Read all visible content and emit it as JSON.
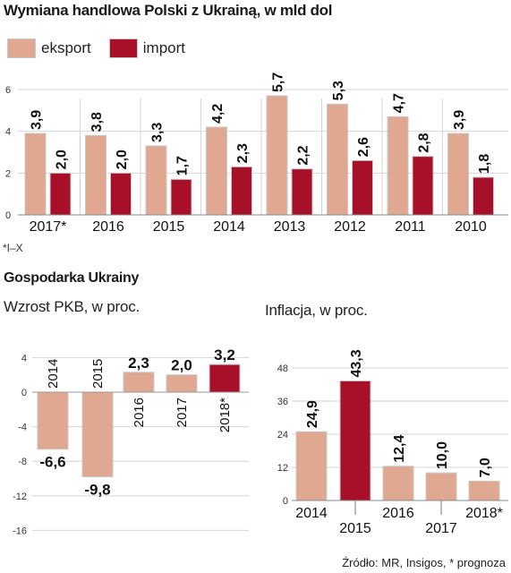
{
  "title": "Wymiana handlowa Polski z Ukrainą, w mld dol",
  "colors": {
    "export": "#e0a891",
    "import": "#a8102a",
    "bar_border": "#c8c8c8"
  },
  "note": "*I–X",
  "section_title": "Gospodarka Ukrainy",
  "source": "Źródło: MR, Insigos, * prognoza",
  "chart_data": [
    {
      "type": "bar",
      "title": "Wymiana handlowa Polski z Ukrainą, w mld dol",
      "categories": [
        "2017*",
        "2016",
        "2015",
        "2014",
        "2013",
        "2012",
        "2011",
        "2010"
      ],
      "series": [
        {
          "name": "eksport",
          "values": [
            3.9,
            3.8,
            3.3,
            4.2,
            5.7,
            5.3,
            4.7,
            3.9
          ],
          "labels": [
            "3,9",
            "3,8",
            "3,3",
            "4,2",
            "5,7",
            "5,3",
            "4,7",
            "3,9"
          ]
        },
        {
          "name": "import",
          "values": [
            2.0,
            2.0,
            1.7,
            2.3,
            2.2,
            2.6,
            2.8,
            1.8
          ],
          "labels": [
            "2,0",
            "2,0",
            "1,7",
            "2,3",
            "2,2",
            "2,6",
            "2,8",
            "1,8"
          ]
        }
      ],
      "yticks": [
        "0",
        "2",
        "4",
        "6"
      ],
      "ylim": [
        0,
        6
      ],
      "legend": "top-left"
    },
    {
      "type": "bar",
      "title": "Wzrost PKB, w proc.",
      "categories": [
        "2014",
        "2015",
        "2016",
        "2017",
        "2018*"
      ],
      "values": [
        -6.6,
        -9.8,
        2.3,
        2.0,
        3.2
      ],
      "labels": [
        "-6,6",
        "-9,8",
        "2,3",
        "2,0",
        "3,2"
      ],
      "highlight_index": 4,
      "yticks": [
        "4",
        "0",
        "-4",
        "-8",
        "-12",
        "-16"
      ],
      "ylim": [
        -16,
        4
      ]
    },
    {
      "type": "bar",
      "title": "Inflacja, w proc.",
      "categories": [
        "2014",
        "2015",
        "2016",
        "2017",
        "2018*"
      ],
      "values": [
        24.9,
        43.3,
        12.4,
        10.0,
        7.0
      ],
      "labels": [
        "24,9",
        "43,3",
        "12,4",
        "10,0",
        "7,0"
      ],
      "highlight_index": 1,
      "yticks": [
        "0",
        "12",
        "24",
        "36",
        "48"
      ],
      "ylim": [
        0,
        48
      ]
    }
  ]
}
